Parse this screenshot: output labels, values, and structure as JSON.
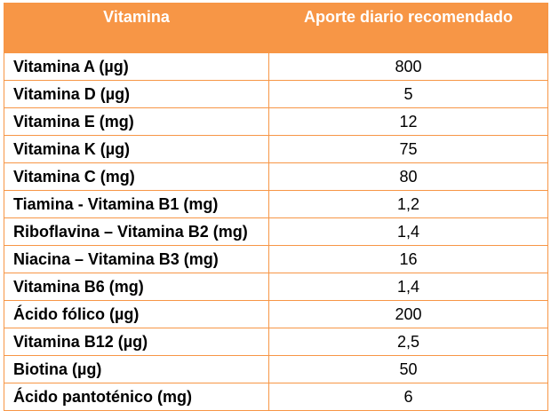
{
  "table": {
    "headers": [
      "Vitamina",
      "Aporte diario recomendado"
    ],
    "header_color": "#f79646",
    "rows": [
      {
        "name": "Vitamina A (µg)",
        "value": "800"
      },
      {
        "name": "Vitamina D (µg)",
        "value": "5"
      },
      {
        "name": "Vitamina E (mg)",
        "value": "12"
      },
      {
        "name": "Vitamina K (µg)",
        "value": "75"
      },
      {
        "name": "Vitamina C (mg)",
        "value": "80"
      },
      {
        "name": "Tiamina - Vitamina B1 (mg)",
        "value": "1,2"
      },
      {
        "name": "Riboflavina – Vitamina B2 (mg)",
        "value": "1,4"
      },
      {
        "name": "Niacina – Vitamina B3 (mg)",
        "value": "16"
      },
      {
        "name": "Vitamina B6 (mg)",
        "value": "1,4"
      },
      {
        "name": "Ácido fólico (µg)",
        "value": "200"
      },
      {
        "name": "Vitamina B12 (µg)",
        "value": "2,5"
      },
      {
        "name": "Biotina (µg)",
        "value": "50"
      },
      {
        "name": "Ácido pantoténico (mg)",
        "value": "6"
      }
    ]
  }
}
